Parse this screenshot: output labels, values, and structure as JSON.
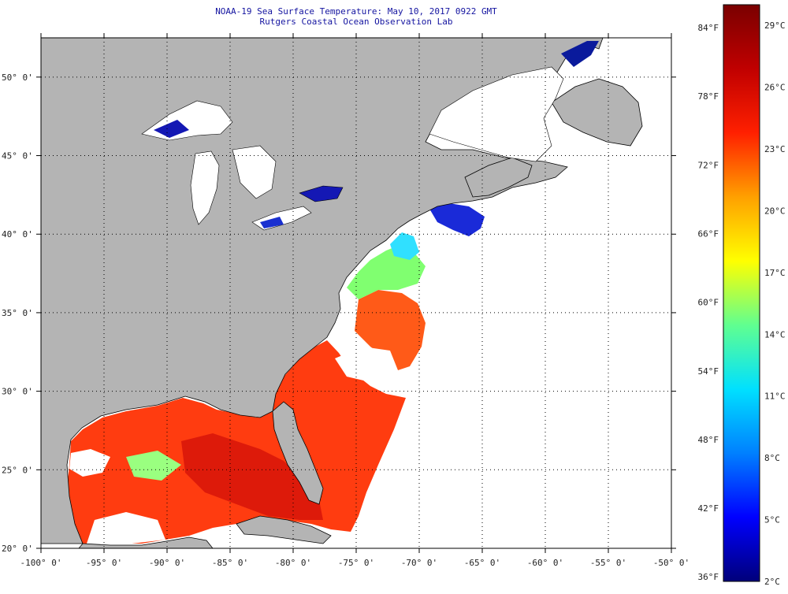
{
  "header": {
    "title": "NOAA-19 Sea Surface Temperature:  May 10, 2017 0922 GMT",
    "subtitle": "Rutgers Coastal Ocean Observation Lab"
  },
  "map": {
    "lon_range": [
      -100,
      -50
    ],
    "lat_range": [
      20,
      52.5
    ],
    "lon_ticks": [
      -100,
      -95,
      -90,
      -85,
      -80,
      -75,
      -70,
      -65,
      -60,
      -55,
      -50
    ],
    "lon_labels": [
      "-100° 0'",
      "-95° 0'",
      "-90° 0'",
      "-85° 0'",
      "-80° 0'",
      "-75° 0'",
      "-70° 0'",
      "-65° 0'",
      "-60° 0'",
      "-55° 0'",
      "-50° 0'"
    ],
    "lat_ticks": [
      20,
      25,
      30,
      35,
      40,
      45,
      50
    ],
    "lat_labels": [
      "20° 0'",
      "25° 0'",
      "30° 0'",
      "35° 0'",
      "40° 0'",
      "45° 0'",
      "50° 0'"
    ],
    "colors": {
      "land": "#b4b4b4",
      "no_data": "#ffffff",
      "coast": "#000000"
    }
  },
  "colorbar": {
    "range_c": [
      2,
      30
    ],
    "f_labels": [
      "36°F",
      "42°F",
      "48°F",
      "54°F",
      "60°F",
      "66°F",
      "72°F",
      "78°F",
      "84°F"
    ],
    "f_values": [
      36,
      42,
      48,
      54,
      60,
      66,
      72,
      78,
      84
    ],
    "c_labels": [
      "2°C",
      "5°C",
      "8°C",
      "11°C",
      "14°C",
      "17°C",
      "20°C",
      "23°C",
      "26°C",
      "29°C"
    ],
    "c_values": [
      2,
      5,
      8,
      11,
      14,
      17,
      20,
      23,
      26,
      29
    ],
    "gradient": [
      "#00007a",
      "#0000ff",
      "#0080ff",
      "#00e0ff",
      "#60ff90",
      "#ffff00",
      "#ffa000",
      "#ff2000",
      "#c00000",
      "#7a0000"
    ]
  }
}
